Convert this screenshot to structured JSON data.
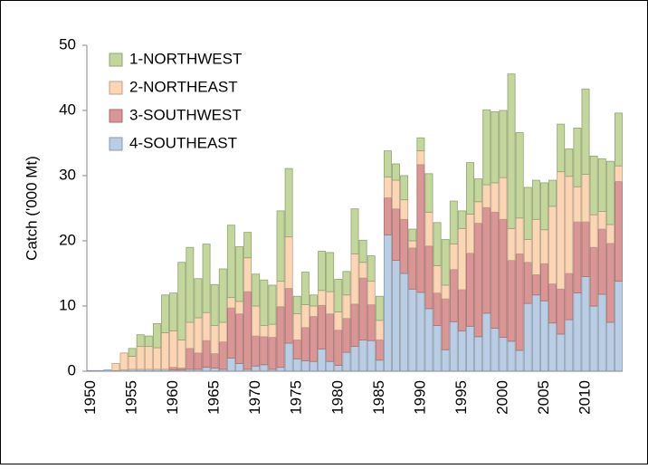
{
  "chart_data": {
    "type": "stacked-bar",
    "y_label": "Catch ('000 Mt)",
    "categories": [
      "1950",
      null,
      null,
      null,
      null,
      "1955",
      null,
      null,
      null,
      null,
      "1960",
      null,
      null,
      null,
      null,
      "1965",
      null,
      null,
      null,
      null,
      "1970",
      null,
      null,
      null,
      null,
      "1975",
      null,
      null,
      null,
      null,
      "1980",
      null,
      null,
      null,
      null,
      "1985",
      null,
      null,
      null,
      null,
      "1990",
      null,
      null,
      null,
      null,
      "1995",
      null,
      null,
      null,
      null,
      "2000",
      null,
      null,
      null,
      null,
      "2005",
      null,
      null,
      null,
      null,
      "2010",
      null,
      null,
      null,
      null
    ],
    "series": [
      {
        "name": "4-SOUTHEAST",
        "color": "#b9cde5",
        "values": [
          0.1,
          0.1,
          0.2,
          0.1,
          0.2,
          0.3,
          0.3,
          0.3,
          0.3,
          0.3,
          0.2,
          0.2,
          0.3,
          0.3,
          0.6,
          0.5,
          0.3,
          2.0,
          1.2,
          0.3,
          0.8,
          1.0,
          0.3,
          0.6,
          4.3,
          1.9,
          1.6,
          1.5,
          3.4,
          1.5,
          0.9,
          2.9,
          3.8,
          4.8,
          4.7,
          1.7,
          20.9,
          17.0,
          15.0,
          12.6,
          12.1,
          9.6,
          7.0,
          3.3,
          7.6,
          6.2,
          6.9,
          5.3,
          8.9,
          6.6,
          5.2,
          4.6,
          3.2,
          10.4,
          11.7,
          10.8,
          7.4,
          5.7,
          7.9,
          12.0,
          14.5,
          10.0,
          11.8,
          7.5,
          13.8
        ]
      },
      {
        "name": "3-SOUTHWEST",
        "color": "#d99694",
        "values": [
          0,
          0,
          0,
          0,
          0,
          0,
          0,
          0,
          0,
          0,
          0.4,
          0.3,
          3.2,
          2.5,
          4.1,
          2.2,
          4.2,
          7.7,
          7.6,
          11.9,
          4.6,
          4.3,
          4.9,
          9.3,
          8.4,
          2.9,
          5.1,
          6.9,
          6.7,
          7.3,
          5.4,
          5.2,
          6.5,
          9.5,
          5.5,
          3.1,
          5.7,
          7.9,
          8.3,
          6.3,
          19.6,
          9.6,
          5.0,
          7.8,
          8.0,
          6.3,
          11.2,
          17.4,
          16.2,
          17.8,
          18.1,
          12.4,
          14.8,
          6.3,
          3.1,
          5.7,
          6.0,
          6.9,
          7.1,
          10.9,
          8.4,
          9.0,
          10.0,
          12.1,
          15.3
        ]
      },
      {
        "name": "2-NORTHEAST",
        "color": "#fcd5b4",
        "values": [
          0,
          0,
          0,
          1.1,
          2.6,
          2.0,
          3.5,
          3.5,
          3.3,
          5.6,
          5.6,
          4.3,
          4.0,
          5.4,
          4.3,
          4.3,
          3.0,
          1.6,
          1.9,
          5.2,
          4.6,
          1.7,
          2.0,
          3.9,
          7.9,
          4.0,
          3.5,
          1.6,
          2.3,
          3.4,
          2.8,
          3.6,
          7.7,
          2.4,
          3.6,
          3.0,
          3.2,
          4.4,
          3.0,
          1.1,
          2.1,
          5.2,
          4.2,
          2.1,
          3.9,
          9.4,
          6.0,
          3.3,
          3.5,
          4.5,
          6.4,
          4.9,
          5.5,
          3.5,
          8.5,
          5.2,
          11.9,
          18.0,
          14.9,
          5.4,
          7.3,
          5.0,
          2.7,
          2.9,
          2.4
        ]
      },
      {
        "name": "1-NORTHWEST",
        "color": "#c3d69b",
        "values": [
          0,
          0,
          0,
          0,
          0,
          1.2,
          1.8,
          1.6,
          3.7,
          5.8,
          5.8,
          11.9,
          11.5,
          6.0,
          10.5,
          6.3,
          8.2,
          11.1,
          8.4,
          3.9,
          4.9,
          7.0,
          6.0,
          10.8,
          10.5,
          2.7,
          5.0,
          1.7,
          6.0,
          6.0,
          5.0,
          3.6,
          6.9,
          3.4,
          3.9,
          3.7,
          4.0,
          2.5,
          3.7,
          1.8,
          2.0,
          5.9,
          6.6,
          7.0,
          6.6,
          2.7,
          7.9,
          3.5,
          11.5,
          10.9,
          10.3,
          23.7,
          13.1,
          8.0,
          6.0,
          7.2,
          4.0,
          7.3,
          4.2,
          9.0,
          13.1,
          9.0,
          8.1,
          9.7,
          8.1
        ]
      }
    ],
    "ylim": [
      0,
      50
    ],
    "yticks": [
      0,
      10,
      20,
      30,
      40,
      50
    ],
    "grid": false,
    "legend": "top-left"
  }
}
